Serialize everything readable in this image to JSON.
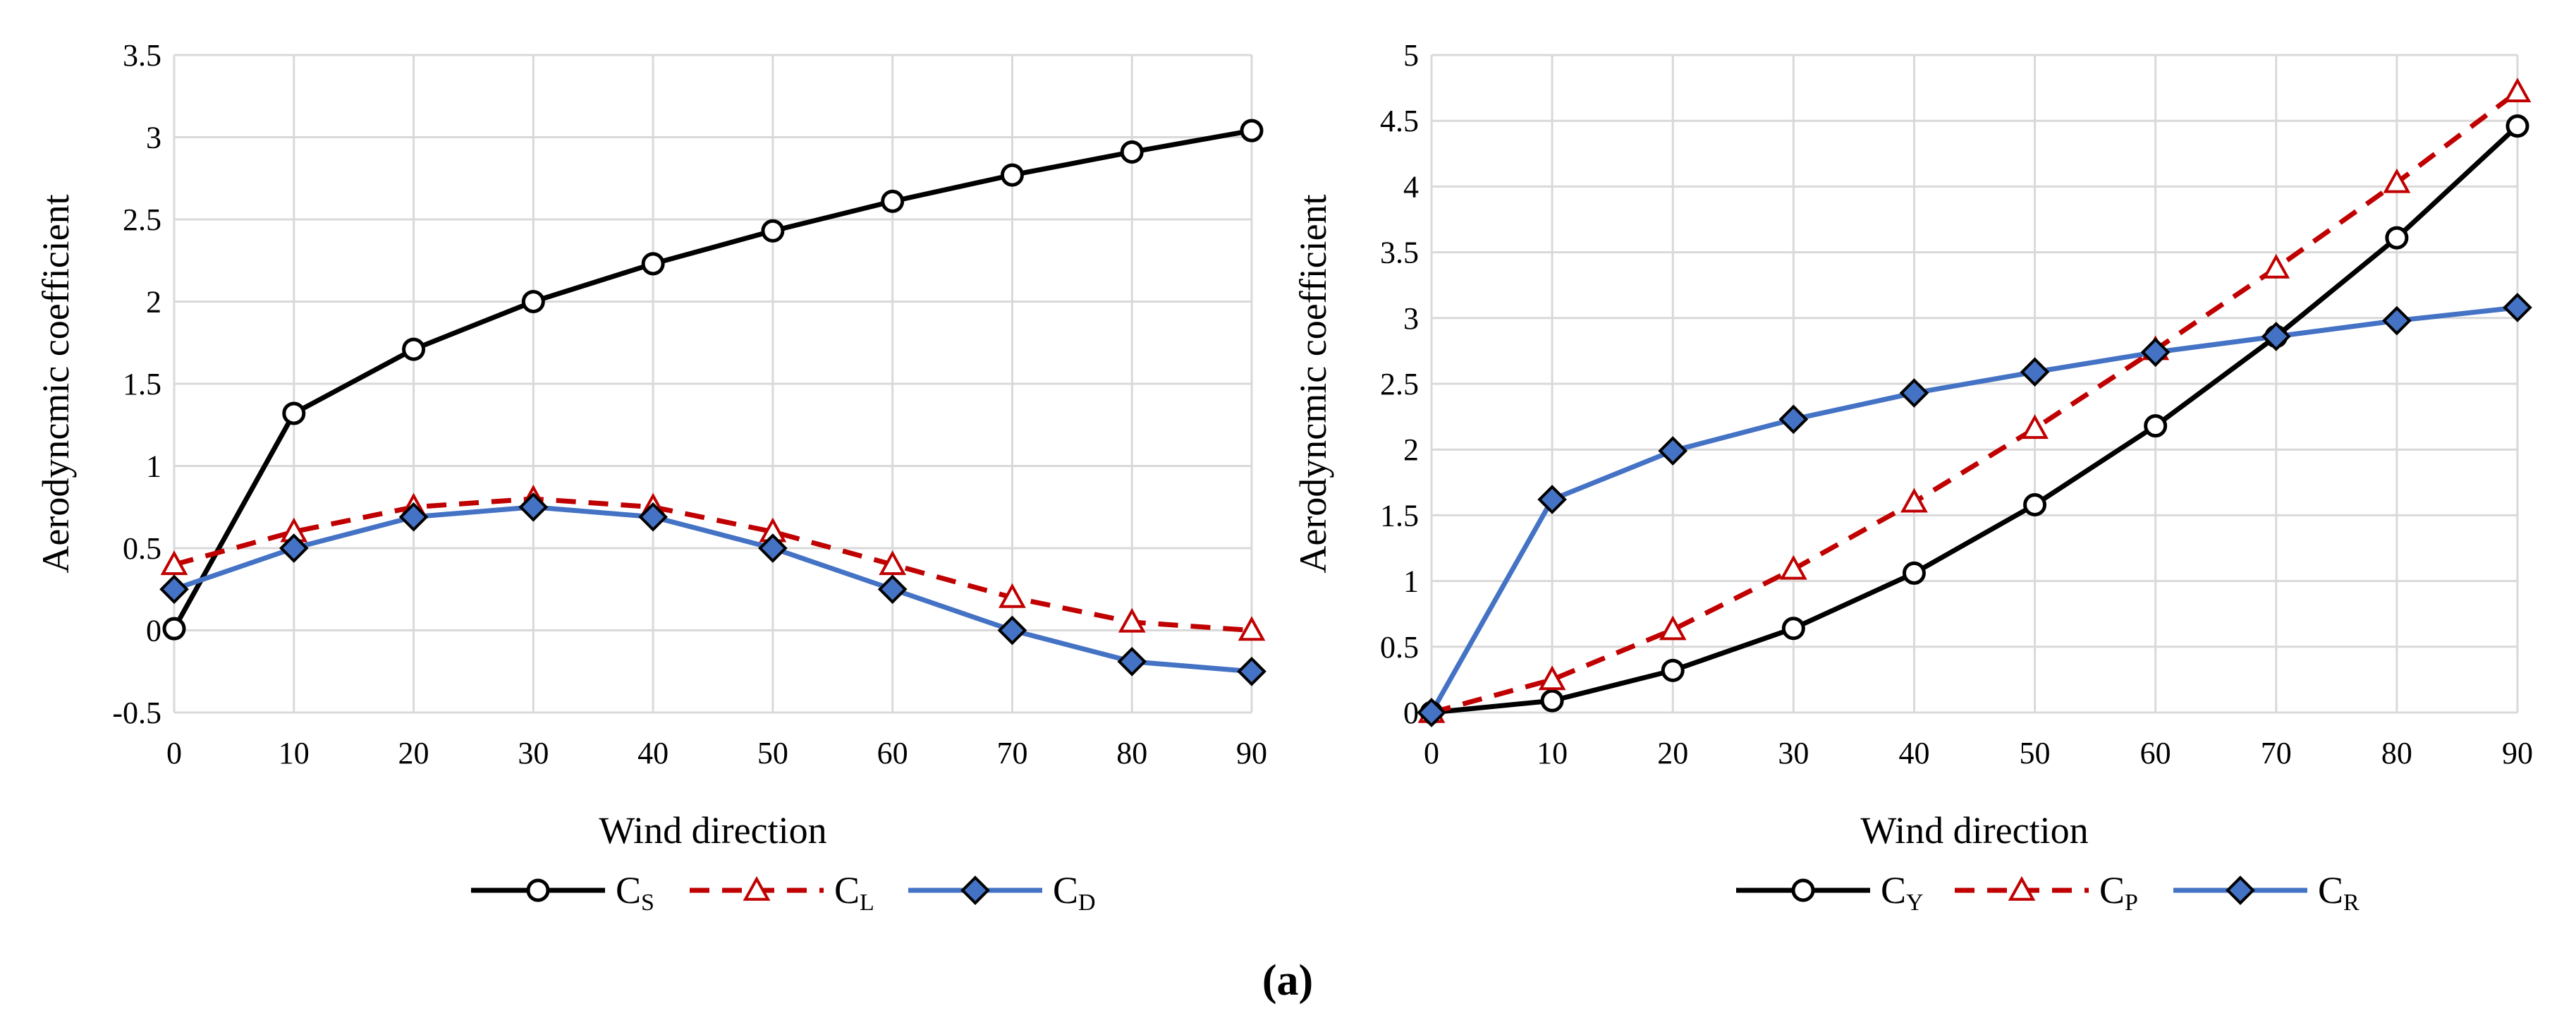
{
  "caption": "(a)",
  "colors": {
    "black": "#000000",
    "red": "#C00000",
    "blue": "#4472C4",
    "grid": "#D9D9D9",
    "marker_fill_blue": "#4472C4"
  },
  "chart_data": [
    {
      "type": "line",
      "title": "",
      "xlabel": "Wind direction",
      "ylabel": "Aerodyncmic coefficient",
      "x": [
        0,
        10,
        20,
        30,
        40,
        50,
        60,
        70,
        80,
        90
      ],
      "xlim": [
        0,
        90
      ],
      "ylim": [
        -0.5,
        3.5
      ],
      "xticks": [
        "0",
        "10",
        "20",
        "30",
        "40",
        "50",
        "60",
        "70",
        "80",
        "90"
      ],
      "yticks": [
        "-0.5",
        "0",
        "0.5",
        "1",
        "1.5",
        "2",
        "2.5",
        "3",
        "3.5"
      ],
      "grid": true,
      "legend_position": "bottom",
      "series": [
        {
          "name": "C",
          "sub": "S",
          "color": "#000000",
          "dash": false,
          "marker": "circle",
          "values": [
            0.01,
            1.32,
            1.71,
            2.0,
            2.23,
            2.43,
            2.61,
            2.77,
            2.91,
            3.04
          ]
        },
        {
          "name": "C",
          "sub": "L",
          "color": "#C00000",
          "dash": true,
          "marker": "triangle",
          "values": [
            0.4,
            0.6,
            0.75,
            0.8,
            0.75,
            0.6,
            0.4,
            0.2,
            0.05,
            0.0
          ]
        },
        {
          "name": "C",
          "sub": "D",
          "color": "#4472C4",
          "dash": false,
          "marker": "diamond",
          "values": [
            0.25,
            0.5,
            0.69,
            0.75,
            0.69,
            0.5,
            0.25,
            0.0,
            -0.19,
            -0.25
          ]
        }
      ]
    },
    {
      "type": "line",
      "title": "",
      "xlabel": "Wind direction",
      "ylabel": "Aerodyncmic coefficient",
      "x": [
        0,
        10,
        20,
        30,
        40,
        50,
        60,
        70,
        80,
        90
      ],
      "xlim": [
        0,
        90
      ],
      "ylim": [
        0,
        5
      ],
      "xticks": [
        "0",
        "10",
        "20",
        "30",
        "40",
        "50",
        "60",
        "70",
        "80",
        "90"
      ],
      "yticks": [
        "0",
        "0.5",
        "1",
        "1.5",
        "2",
        "2.5",
        "3",
        "3.5",
        "4",
        "4.5",
        "5"
      ],
      "grid": true,
      "legend_position": "bottom",
      "series": [
        {
          "name": "C",
          "sub": "Y",
          "color": "#000000",
          "dash": false,
          "marker": "circle",
          "values": [
            0.0,
            0.09,
            0.32,
            0.64,
            1.06,
            1.58,
            2.18,
            2.86,
            3.61,
            4.46
          ]
        },
        {
          "name": "C",
          "sub": "P",
          "color": "#C00000",
          "dash": true,
          "marker": "triangle",
          "values": [
            0.0,
            0.25,
            0.63,
            1.09,
            1.6,
            2.16,
            2.76,
            3.38,
            4.03,
            4.72
          ]
        },
        {
          "name": "C",
          "sub": "R",
          "color": "#4472C4",
          "dash": false,
          "marker": "diamond",
          "values": [
            0.0,
            1.62,
            1.99,
            2.23,
            2.43,
            2.59,
            2.74,
            2.86,
            2.98,
            3.08
          ]
        }
      ]
    }
  ]
}
